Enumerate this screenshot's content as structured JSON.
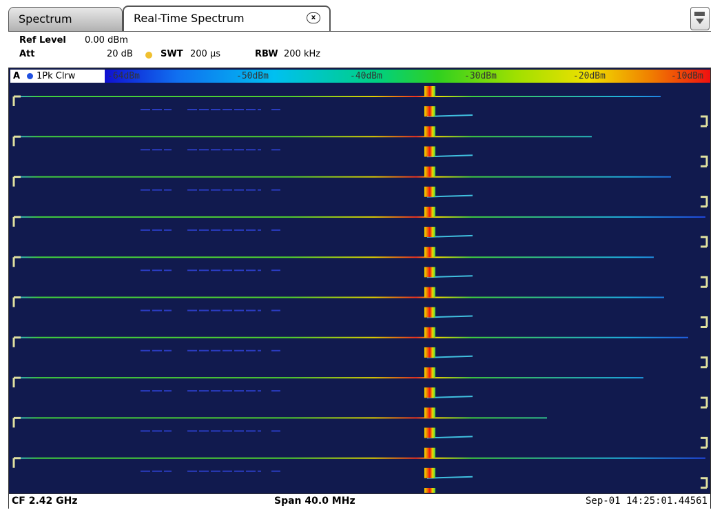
{
  "tabs": [
    {
      "label": "Spectrum"
    },
    {
      "label": "Real-Time Spectrum"
    }
  ],
  "header": {
    "ref_level_label": "Ref Level",
    "ref_level": "0.00 dBm",
    "att_label": "Att",
    "att": "20 dB",
    "swt_label": "SWT",
    "swt": "200 µs",
    "rbw_label": "RBW",
    "rbw": "200 kHz"
  },
  "trace": {
    "id": "A",
    "mode": "1Pk Clrw"
  },
  "color_scale": [
    "-64dBm",
    "-50dBm",
    "-40dBm",
    "-30dBm",
    "-20dBm",
    "-10dBm"
  ],
  "footer": {
    "center_frequency": "CF 2.42 GHz",
    "span": "Span 40.0 MHz",
    "timestamp": "Sep-01 14:25:01.44561"
  }
}
